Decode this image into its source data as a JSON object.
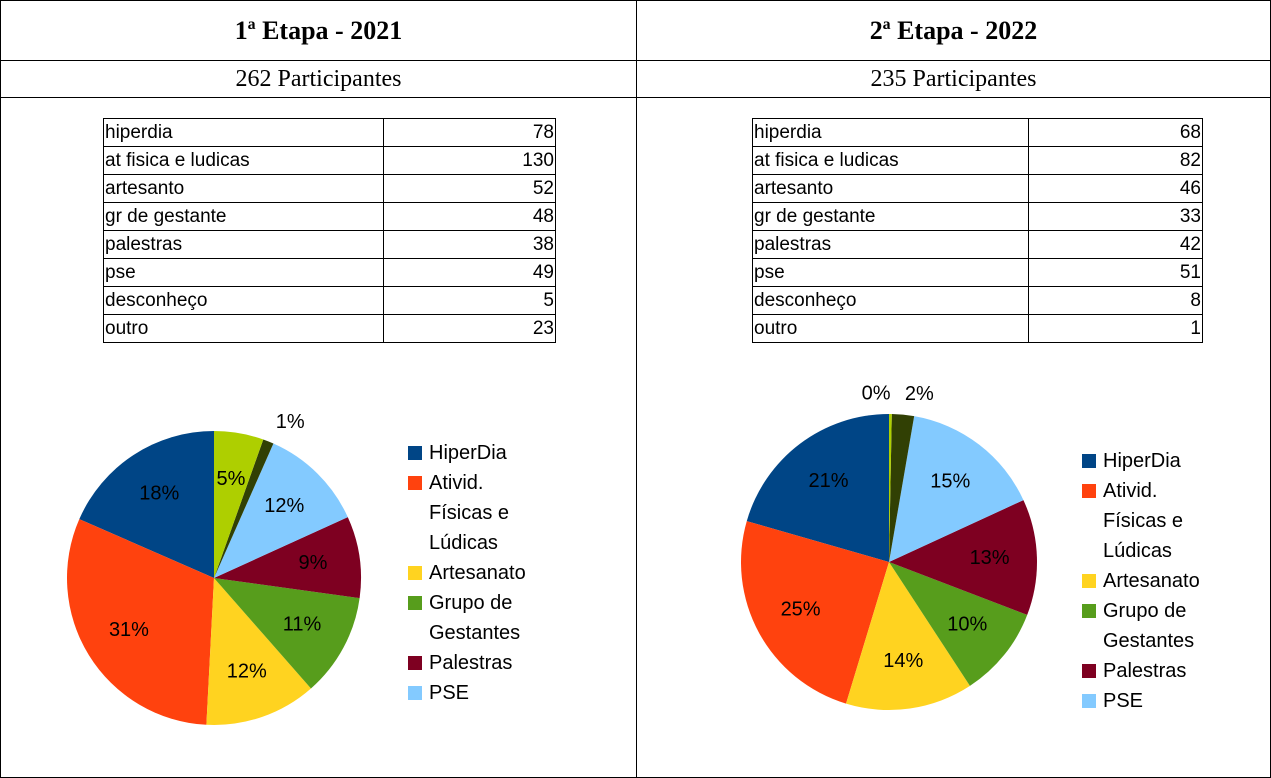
{
  "panels": [
    {
      "title": "1ª Etapa - 2021",
      "participants": "262 Participantes",
      "table": [
        [
          "hiperdia",
          78
        ],
        [
          "at fisica e ludicas",
          130
        ],
        [
          "artesanto",
          52
        ],
        [
          "gr de gestante",
          48
        ],
        [
          "palestras",
          38
        ],
        [
          "pse",
          49
        ],
        [
          "desconheço",
          5
        ],
        [
          "outro",
          23
        ]
      ],
      "pie": {
        "type": "pie",
        "values": [
          18.44,
          30.73,
          12.29,
          11.35,
          8.98,
          11.58,
          1.18,
          5.44
        ],
        "value_labels": [
          "18%",
          "31%",
          "12%",
          "11%",
          "9%",
          "12%",
          "1%",
          "5%"
        ],
        "colors": [
          "#004586",
          "#ff420e",
          "#ffd320",
          "#579d1c",
          "#7e0021",
          "#83caff",
          "#314004",
          "#aecf00"
        ],
        "legend": [
          "HiperDia",
          "Ativid. Físicas e Lúdicas",
          "Artesanato",
          "Grupo de Gestantes",
          "Palestras",
          "PSE"
        ]
      }
    },
    {
      "title": "2ª Etapa - 2022",
      "participants": "235 Participantes",
      "table": [
        [
          "hiperdia",
          68
        ],
        [
          "at fisica e ludicas",
          82
        ],
        [
          "artesanto",
          46
        ],
        [
          "gr de gestante",
          33
        ],
        [
          "palestras",
          42
        ],
        [
          "pse",
          51
        ],
        [
          "desconheço",
          8
        ],
        [
          "outro",
          1
        ]
      ],
      "pie": {
        "type": "pie",
        "values": [
          20.54,
          24.77,
          13.9,
          9.97,
          12.69,
          15.41,
          2.42,
          0.3
        ],
        "value_labels": [
          "21%",
          "25%",
          "14%",
          "10%",
          "13%",
          "15%",
          "2%",
          "0%"
        ],
        "colors": [
          "#004586",
          "#ff420e",
          "#ffd320",
          "#579d1c",
          "#7e0021",
          "#83caff",
          "#314004",
          "#aecf00"
        ],
        "legend": [
          "HiperDia",
          "Ativid. Físicas e Lúdicas",
          "Artesanato",
          "Grupo de Gestantes",
          "Palestras",
          "PSE"
        ]
      }
    }
  ]
}
